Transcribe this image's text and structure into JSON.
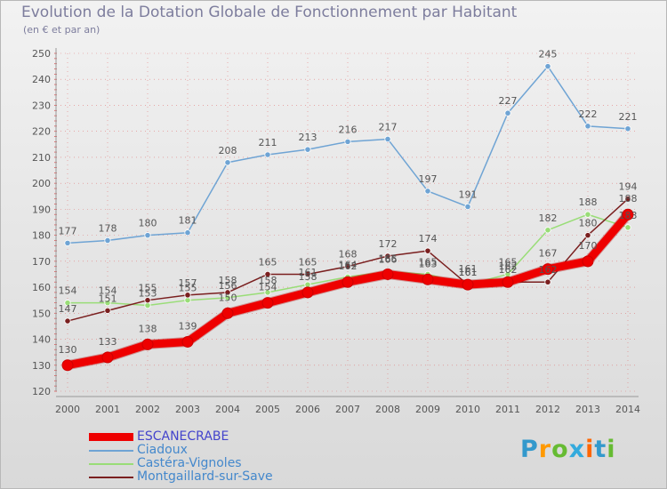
{
  "title": "Evolution de la Dotation Globale de Fonctionnement par Habitant",
  "subtitle": "(en € et par an)",
  "logo": {
    "text": "Proxiti",
    "colors": [
      "#3399cc",
      "#ff9900",
      "#66bb33",
      "#33aadd",
      "#ff6600",
      "#3399cc",
      "#66bb33"
    ]
  },
  "colors": {
    "text": "#7d7d9d",
    "grid": "#e05050",
    "axis": "#999999"
  },
  "chart_data": {
    "type": "line",
    "title": "Evolution de la Dotation Globale de Fonctionnement par Habitant",
    "ylabel": "(en € et par an)",
    "xlabel": "",
    "x": [
      "2000",
      "2001",
      "2002",
      "2003",
      "2004",
      "2005",
      "2006",
      "2007",
      "2008",
      "2009",
      "2010",
      "2011",
      "2012",
      "2013",
      "2014"
    ],
    "ylim": [
      120,
      250
    ],
    "yticks": [
      120,
      130,
      140,
      150,
      160,
      170,
      180,
      190,
      200,
      210,
      220,
      230,
      240,
      250
    ],
    "legend_position": "bottom-left",
    "series": [
      {
        "name": "ESCANECRABE",
        "color": "#ee0000",
        "labelColor": "#4444cc",
        "width": 9,
        "labels": true,
        "values": [
          130,
          133,
          138,
          139,
          150,
          154,
          158,
          162,
          165,
          163,
          161,
          162,
          167,
          170,
          188
        ]
      },
      {
        "name": "Ciadoux",
        "color": "#6fa4d4",
        "labelColor": "#4488cc",
        "width": 1.5,
        "labels": true,
        "values": [
          177,
          178,
          180,
          181,
          208,
          211,
          213,
          216,
          217,
          197,
          191,
          227,
          245,
          222,
          221
        ]
      },
      {
        "name": "Castéra-Vignoles",
        "color": "#99dd77",
        "labelColor": "#4488cc",
        "width": 1.5,
        "labels": true,
        "values": [
          154,
          154,
          153,
          155,
          156,
          158,
          161,
          164,
          166,
          165,
          161,
          165,
          182,
          188,
          183
        ]
      },
      {
        "name": "Montgaillard-sur-Save",
        "color": "#7a1f1f",
        "labelColor": "#4488cc",
        "width": 1.5,
        "labels": true,
        "values": [
          147,
          151,
          155,
          157,
          158,
          165,
          165,
          168,
          172,
          174,
          161,
          162,
          162,
          180,
          194
        ]
      }
    ]
  }
}
